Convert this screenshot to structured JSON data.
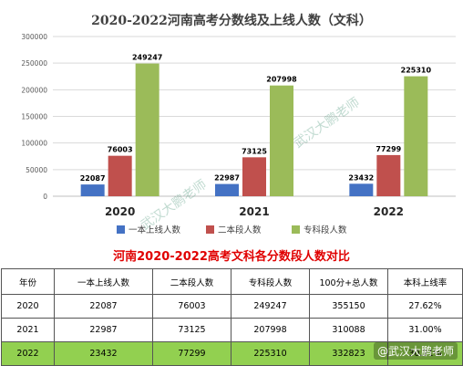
{
  "chart_data": {
    "type": "bar",
    "title": "2020-2022河南高考分数线及上线人数（文科）",
    "categories": [
      "2020",
      "2021",
      "2022"
    ],
    "ylim": [
      0,
      300000
    ],
    "yticks": [
      "0",
      "50000",
      "100000",
      "150000",
      "200000",
      "250000",
      "300000"
    ],
    "ytick_values": [
      0,
      50000,
      100000,
      150000,
      200000,
      250000,
      300000
    ],
    "grid": true,
    "legend_position": "bottom",
    "series": [
      {
        "name": "一本上线人数",
        "color": "#4472c4",
        "values": [
          22087,
          22987,
          23432
        ]
      },
      {
        "name": "二本段人数",
        "color": "#c0504d",
        "values": [
          76003,
          73125,
          77299
        ]
      },
      {
        "name": "专科段人数",
        "color": "#9bbb59",
        "values": [
          249247,
          207998,
          225310
        ]
      }
    ]
  },
  "table": {
    "title": "河南2020-2022高考文科各分数段人数对比",
    "headers": [
      "年份",
      "一本上线人数",
      "二本段人数",
      "专科段人数",
      "100分+总人数",
      "本科上线率"
    ],
    "rows": [
      [
        "2020",
        "22087",
        "76003",
        "249247",
        "355150",
        "27.62%"
      ],
      [
        "2021",
        "22987",
        "73125",
        "207998",
        "310088",
        "31.00%"
      ],
      [
        "2022",
        "23432",
        "77299",
        "225310",
        "332823",
        "30.21%"
      ]
    ]
  },
  "watermark": {
    "diagonal": "武汉大鹏老师",
    "corner": "@武汉大鹏老师"
  }
}
